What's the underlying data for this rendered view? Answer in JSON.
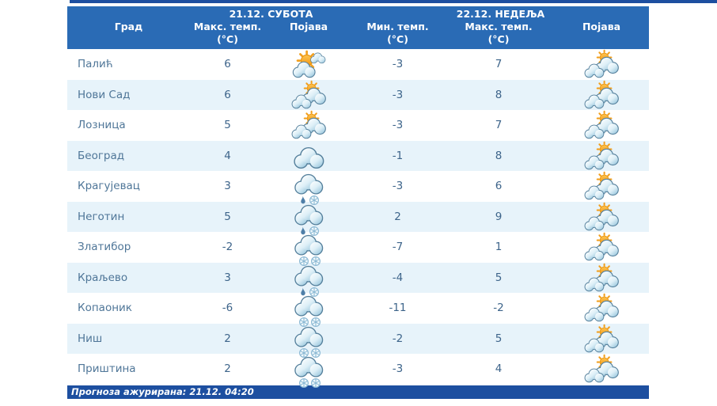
{
  "colors": {
    "header_bg": "#2a6bb5",
    "dark_bar": "#1d4fa0",
    "row_alt_bg": "#e7f3fa",
    "city_text": "#4f7698",
    "value_text": "#3d648a",
    "header_text": "#ffffff"
  },
  "table": {
    "col_city": "Град",
    "day1": {
      "date_label": "21.12. СУБОТА",
      "col_max": "Макс. темп.",
      "unit": "(°C)",
      "col_icon": "Појава"
    },
    "day2": {
      "date_label": "22.12. НЕДЕЉА",
      "col_min": "Мин. темп.",
      "col_max": "Макс. темп.",
      "unit": "(°C)",
      "col_icon": "Појава"
    },
    "rows": [
      {
        "city": "Палић",
        "sat_max": "6",
        "sat_icon": "sunny-with-clouds",
        "sun_min": "-3",
        "sun_max": "7",
        "sun_icon": "partly-cloudy"
      },
      {
        "city": "Нови Сад",
        "sat_max": "6",
        "sat_icon": "partly-cloudy",
        "sun_min": "-3",
        "sun_max": "8",
        "sun_icon": "partly-cloudy"
      },
      {
        "city": "Лозница",
        "sat_max": "5",
        "sat_icon": "partly-cloudy",
        "sun_min": "-3",
        "sun_max": "7",
        "sun_icon": "partly-cloudy"
      },
      {
        "city": "Београд",
        "sat_max": "4",
        "sat_icon": "cloudy",
        "sun_min": "-1",
        "sun_max": "8",
        "sun_icon": "partly-cloudy"
      },
      {
        "city": "Крагујевац",
        "sat_max": "3",
        "sat_icon": "rain-and-snow",
        "sun_min": "-3",
        "sun_max": "6",
        "sun_icon": "partly-cloudy"
      },
      {
        "city": "Неготин",
        "sat_max": "5",
        "sat_icon": "rain-and-snow",
        "sun_min": "2",
        "sun_max": "9",
        "sun_icon": "partly-cloudy"
      },
      {
        "city": "Златибор",
        "sat_max": "-2",
        "sat_icon": "snow",
        "sun_min": "-7",
        "sun_max": "1",
        "sun_icon": "partly-cloudy"
      },
      {
        "city": "Краљево",
        "sat_max": "3",
        "sat_icon": "rain-and-snow",
        "sun_min": "-4",
        "sun_max": "5",
        "sun_icon": "partly-cloudy"
      },
      {
        "city": "Копаоник",
        "sat_max": "-6",
        "sat_icon": "snow",
        "sun_min": "-11",
        "sun_max": "-2",
        "sun_icon": "partly-cloudy"
      },
      {
        "city": "Ниш",
        "sat_max": "2",
        "sat_icon": "snow",
        "sun_min": "-2",
        "sun_max": "5",
        "sun_icon": "partly-cloudy"
      },
      {
        "city": "Приштина",
        "sat_max": "2",
        "sat_icon": "snow",
        "sun_min": "-3",
        "sun_max": "4",
        "sun_icon": "partly-cloudy"
      }
    ]
  },
  "footer": {
    "text": "Прогноза ажурирана:  21.12. 04:20"
  }
}
